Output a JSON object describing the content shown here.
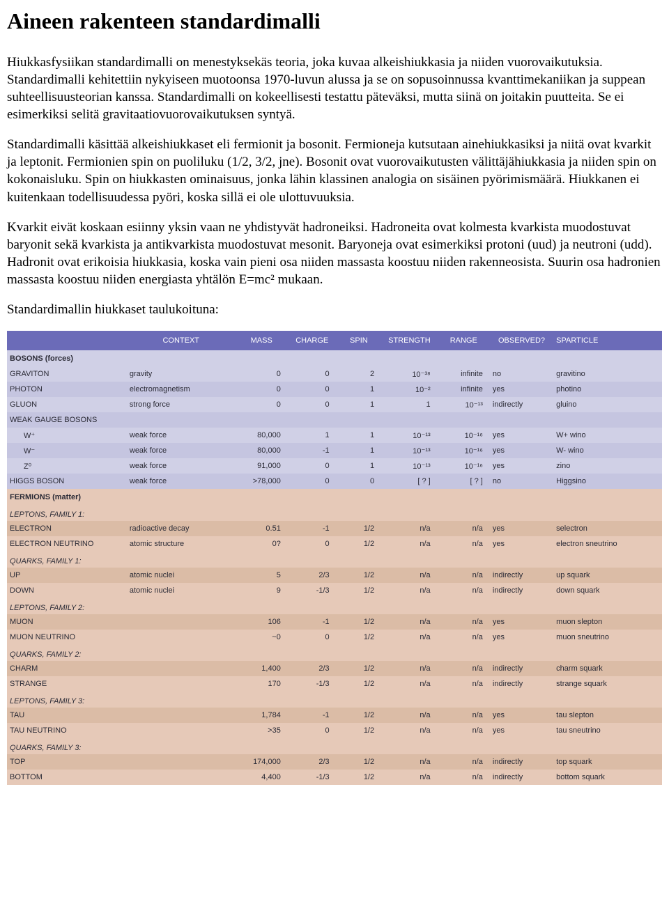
{
  "title": "Aineen rakenteen standardimalli",
  "paragraphs": [
    "Hiukkasfysiikan standardimalli on menestyksekäs teoria, joka kuvaa alkeishiukkasia ja niiden vuorovaikutuksia. Standardimalli kehitettiin nykyiseen muotoonsa 1970-luvun alussa ja se on sopusoinnussa kvanttimekaniikan ja suppean suhteellisuusteorian kanssa. Standardimalli on kokeellisesti testattu päteväksi, mutta siinä on joitakin puutteita. Se ei esimerkiksi selitä gravitaatiovuorovaikutuksen syntyä.",
    "Standardimalli käsittää alkeishiukkaset eli fermionit ja bosonit. Fermioneja kutsutaan ainehiukkasiksi ja niitä ovat kvarkit ja leptonit. Fermionien spin on puoliluku (1/2, 3/2, jne). Bosonit ovat vuorovaikutusten välittäjähiukkasia ja niiden spin on kokonaisluku. Spin on hiukkasten ominaisuus, jonka lähin klassinen analogia on sisäinen pyörimismäärä. Hiukkanen ei kuitenkaan todellisuudessa pyöri, koska sillä ei ole ulottuvuuksia.",
    "Kvarkit eivät koskaan esiinny yksin vaan ne yhdistyvät hadroneiksi. Hadroneita ovat kolmesta kvarkista muodostuvat baryonit sekä kvarkista ja antikvarkista muodostuvat mesonit. Baryoneja ovat esimerkiksi protoni (uud) ja neutroni (udd). Hadronit ovat erikoisia hiukkasia, koska vain pieni osa niiden massasta koostuu niiden rakenneosista. Suurin osa hadronien massasta koostuu niiden energiasta yhtälön E=mc² mukaan.",
    "Standardimallin hiukkaset taulukoituna:"
  ],
  "table": {
    "header_bg": "#6b6bb8",
    "bosons_bg": "#d0d0e6",
    "bosons_bg_alt": "#c5c5e0",
    "fermions_bg": "#e6c9b8",
    "fermions_bg_alt": "#dbbca6",
    "columns": [
      "",
      "CONTEXT",
      "MASS",
      "CHARGE",
      "SPIN",
      "STRENGTH",
      "RANGE",
      "OBSERVED?",
      "SPARTICLE"
    ],
    "bosons": {
      "title": "BOSONS (forces)",
      "rows": [
        {
          "name": "GRAVITON",
          "ctx": "gravity",
          "mass": "0",
          "chg": "0",
          "spin": "2",
          "str": "10⁻³⁸",
          "rng": "infinite",
          "obs": "no",
          "sp": "gravitino"
        },
        {
          "name": "PHOTON",
          "ctx": "electromagnetism",
          "mass": "0",
          "chg": "0",
          "spin": "1",
          "str": "10⁻²",
          "rng": "infinite",
          "obs": "yes",
          "sp": "photino"
        },
        {
          "name": "GLUON",
          "ctx": "strong force",
          "mass": "0",
          "chg": "0",
          "spin": "1",
          "str": "1",
          "rng": "10⁻¹³",
          "obs": "indirectly",
          "sp": "gluino"
        },
        {
          "name": "WEAK GAUGE BOSONS",
          "ctx": "",
          "mass": "",
          "chg": "",
          "spin": "",
          "str": "",
          "rng": "",
          "obs": "",
          "sp": ""
        },
        {
          "name": "W⁺",
          "indent": true,
          "ctx": "weak force",
          "mass": "80,000",
          "chg": "1",
          "spin": "1",
          "str": "10⁻¹³",
          "rng": "10⁻¹⁶",
          "obs": "yes",
          "sp": "W+ wino"
        },
        {
          "name": "W⁻",
          "indent": true,
          "ctx": "weak force",
          "mass": "80,000",
          "chg": "-1",
          "spin": "1",
          "str": "10⁻¹³",
          "rng": "10⁻¹⁶",
          "obs": "yes",
          "sp": "W- wino"
        },
        {
          "name": "Z⁰",
          "indent": true,
          "ctx": "weak force",
          "mass": "91,000",
          "chg": "0",
          "spin": "1",
          "str": "10⁻¹³",
          "rng": "10⁻¹⁶",
          "obs": "yes",
          "sp": "zino"
        },
        {
          "name": "HIGGS BOSON",
          "ctx": "weak force",
          "mass": ">78,000",
          "chg": "0",
          "spin": "0",
          "str": "[ ? ]",
          "rng": "[ ? ]",
          "obs": "no",
          "sp": "Higgsino"
        }
      ]
    },
    "fermions": {
      "title": "FERMIONS (matter)",
      "groups": [
        {
          "sub": "LEPTONS, FAMILY 1:",
          "rows": [
            {
              "name": "ELECTRON",
              "ctx": "radioactive decay",
              "mass": "0.51",
              "chg": "-1",
              "spin": "1/2",
              "str": "n/a",
              "rng": "n/a",
              "obs": "yes",
              "sp": "selectron"
            },
            {
              "name": "ELECTRON NEUTRINO",
              "ctx": "atomic structure",
              "mass": "0?",
              "chg": "0",
              "spin": "1/2",
              "str": "n/a",
              "rng": "n/a",
              "obs": "yes",
              "sp": "electron sneutrino"
            }
          ]
        },
        {
          "sub": "QUARKS, FAMILY 1:",
          "rows": [
            {
              "name": "UP",
              "ctx": "atomic nuclei",
              "mass": "5",
              "chg": "2/3",
              "spin": "1/2",
              "str": "n/a",
              "rng": "n/a",
              "obs": "indirectly",
              "sp": "up squark"
            },
            {
              "name": "DOWN",
              "ctx": "atomic nuclei",
              "mass": "9",
              "chg": "-1/3",
              "spin": "1/2",
              "str": "n/a",
              "rng": "n/a",
              "obs": "indirectly",
              "sp": "down squark"
            }
          ]
        },
        {
          "sub": "LEPTONS, FAMILY 2:",
          "rows": [
            {
              "name": "MUON",
              "ctx": "",
              "mass": "106",
              "chg": "-1",
              "spin": "1/2",
              "str": "n/a",
              "rng": "n/a",
              "obs": "yes",
              "sp": "muon slepton"
            },
            {
              "name": "MUON NEUTRINO",
              "ctx": "",
              "mass": "~0",
              "chg": "0",
              "spin": "1/2",
              "str": "n/a",
              "rng": "n/a",
              "obs": "yes",
              "sp": "muon sneutrino"
            }
          ]
        },
        {
          "sub": "QUARKS, FAMILY 2:",
          "rows": [
            {
              "name": "CHARM",
              "ctx": "",
              "mass": "1,400",
              "chg": "2/3",
              "spin": "1/2",
              "str": "n/a",
              "rng": "n/a",
              "obs": "indirectly",
              "sp": "charm squark"
            },
            {
              "name": "STRANGE",
              "ctx": "",
              "mass": "170",
              "chg": "-1/3",
              "spin": "1/2",
              "str": "n/a",
              "rng": "n/a",
              "obs": "indirectly",
              "sp": "strange squark"
            }
          ]
        },
        {
          "sub": "LEPTONS, FAMILY 3:",
          "rows": [
            {
              "name": "TAU",
              "ctx": "",
              "mass": "1,784",
              "chg": "-1",
              "spin": "1/2",
              "str": "n/a",
              "rng": "n/a",
              "obs": "yes",
              "sp": "tau slepton"
            },
            {
              "name": "TAU NEUTRINO",
              "ctx": "",
              "mass": ">35",
              "chg": "0",
              "spin": "1/2",
              "str": "n/a",
              "rng": "n/a",
              "obs": "yes",
              "sp": "tau sneutrino"
            }
          ]
        },
        {
          "sub": "QUARKS, FAMILY 3:",
          "rows": [
            {
              "name": "TOP",
              "ctx": "",
              "mass": "174,000",
              "chg": "2/3",
              "spin": "1/2",
              "str": "n/a",
              "rng": "n/a",
              "obs": "indirectly",
              "sp": "top squark"
            },
            {
              "name": "BOTTOM",
              "ctx": "",
              "mass": "4,400",
              "chg": "-1/3",
              "spin": "1/2",
              "str": "n/a",
              "rng": "n/a",
              "obs": "indirectly",
              "sp": "bottom squark"
            }
          ]
        }
      ]
    }
  }
}
